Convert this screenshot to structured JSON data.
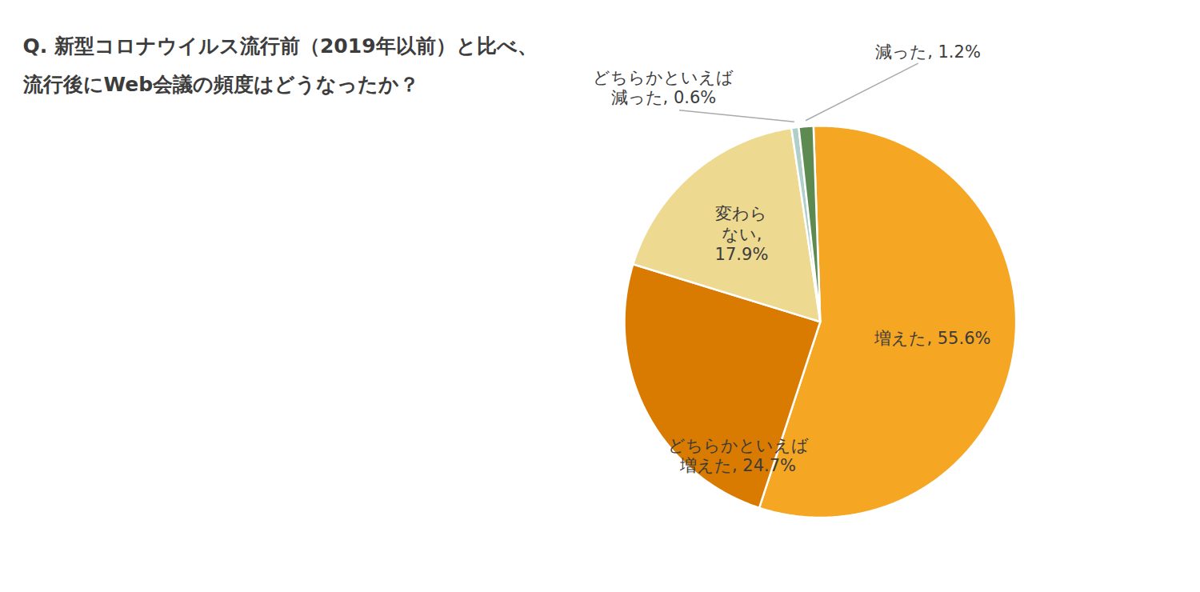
{
  "chart_data": {
    "type": "pie",
    "title": "Q. 新型コロナウイルス流行前（2019年以前）と比べ、\n流行後にWeb会議の頻度はどうなったか？",
    "values": [
      55.6,
      24.7,
      17.9,
      0.6,
      1.2
    ],
    "value_labels": [
      "増えた, 55.6%",
      "どちらかといえば\n増えた, 24.7%",
      "変わら\nない,\n17.9%",
      "どちらかといえば\n減った, 0.6%",
      "減った, 1.2%"
    ],
    "colors": [
      "#F5A623",
      "#D97B00",
      "#EDD990",
      "#B0CFC8",
      "#5C8A50"
    ],
    "data_labels": true
  }
}
